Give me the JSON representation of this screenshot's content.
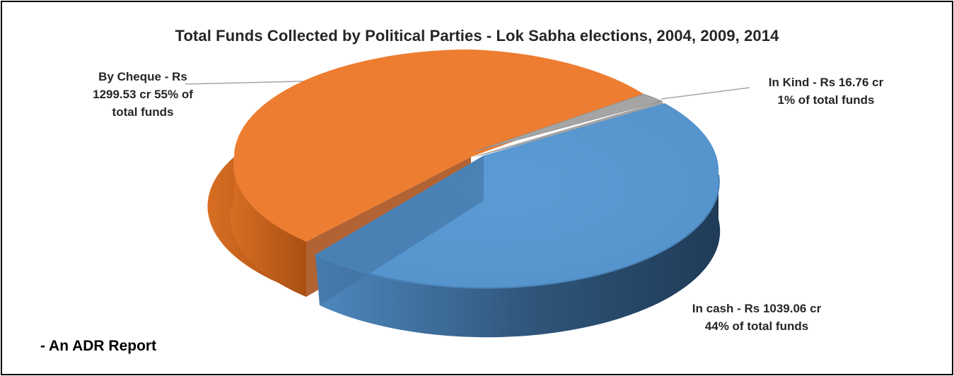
{
  "chart_data": {
    "type": "pie",
    "title": "Total Funds Collected by Political Parties - Lok Sabha elections, 2004, 2009, 2014",
    "slices": [
      {
        "name": "By Cheque",
        "value": 1299.53,
        "percent": 55,
        "color": "#ED7D31",
        "label_lines": [
          "By Cheque - Rs",
          "1299.53 cr 55% of",
          "total funds"
        ]
      },
      {
        "name": "In Kind",
        "value": 16.76,
        "percent": 1,
        "color": "#A5A5A5",
        "label_lines": [
          "In Kind - Rs 16.76 cr",
          "1% of total funds"
        ]
      },
      {
        "name": "In cash",
        "value": 1039.06,
        "percent": 44,
        "color": "#5B9BD5",
        "label_lines": [
          "In cash  - Rs 1039.06 cr",
          "44% of total funds"
        ]
      }
    ],
    "style": "3d-pie-exploded"
  },
  "footer": "- An ADR Report"
}
